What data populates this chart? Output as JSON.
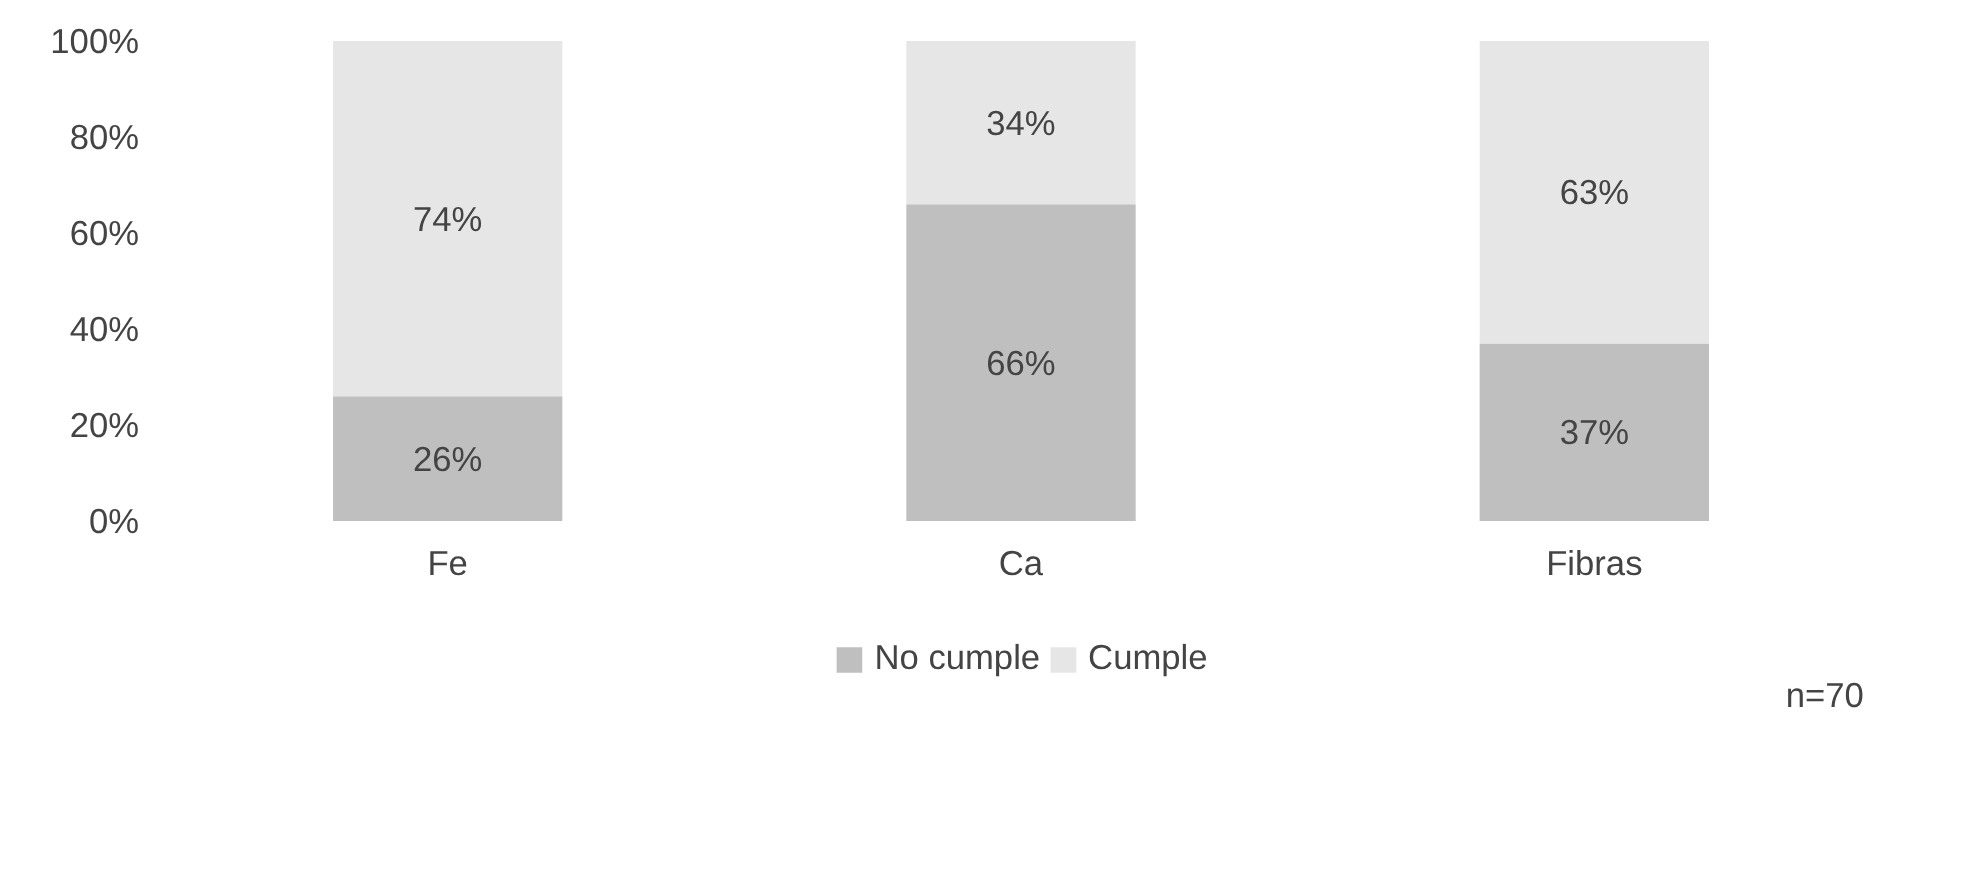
{
  "chart_data": {
    "type": "bar",
    "stacked": true,
    "categories": [
      "Fe",
      "Ca",
      "Fibras"
    ],
    "series": [
      {
        "name": "No cumple",
        "color": "#bfbfbf",
        "values": [
          26,
          66,
          37
        ],
        "value_labels": [
          "26%",
          "66%",
          "37%"
        ]
      },
      {
        "name": "Cumple",
        "color": "#e6e6e6",
        "values": [
          74,
          34,
          63
        ],
        "value_labels": [
          "74%",
          "34%",
          "63%"
        ]
      }
    ],
    "ylim": [
      0,
      100
    ],
    "yticks": [
      {
        "value": 0,
        "label": "0%"
      },
      {
        "value": 20,
        "label": "20%"
      },
      {
        "value": 40,
        "label": "40%"
      },
      {
        "value": 60,
        "label": "60%"
      },
      {
        "value": 80,
        "label": "80%"
      },
      {
        "value": 100,
        "label": "100%"
      }
    ],
    "grid": false,
    "legend": "bottom",
    "annotations": [
      "n=70"
    ]
  }
}
